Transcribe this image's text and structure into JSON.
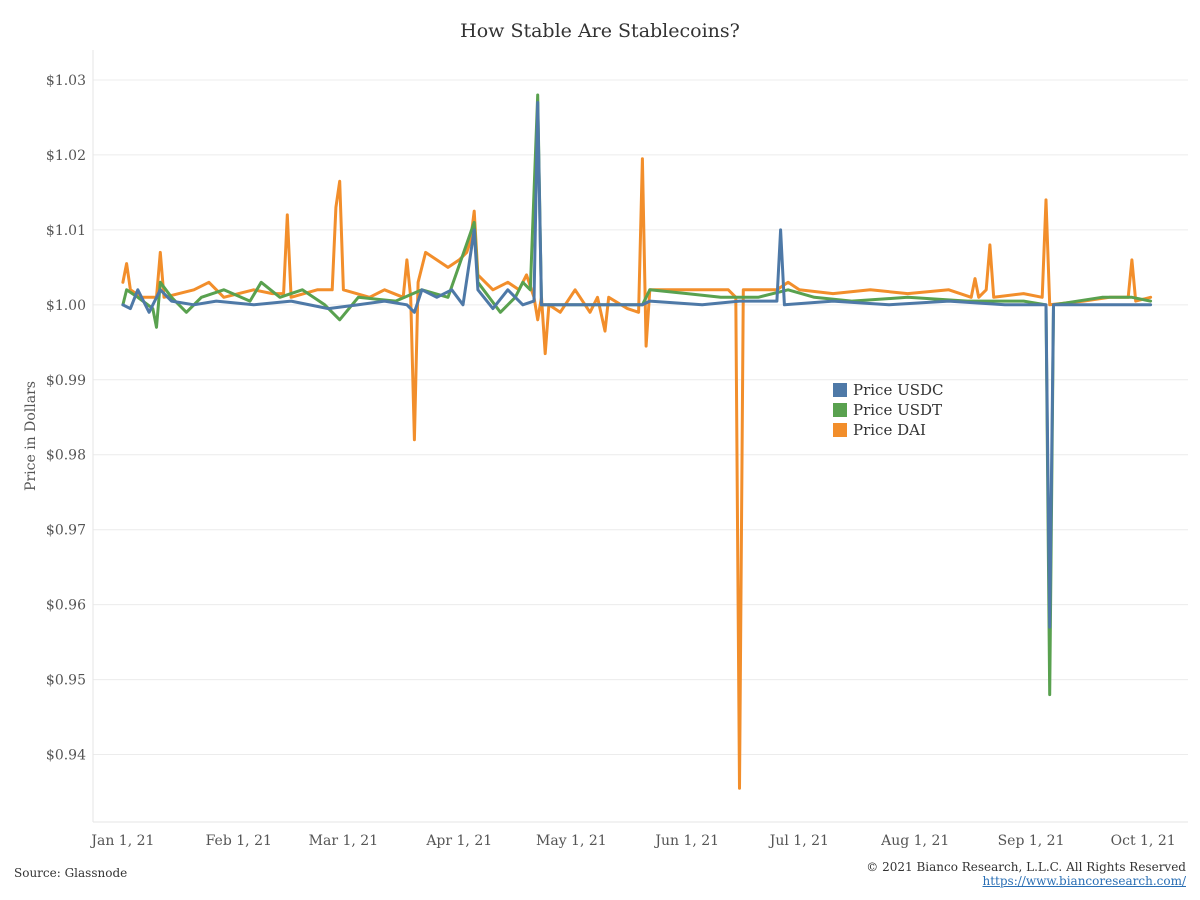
{
  "chart_data": {
    "type": "line",
    "title": "How Stable Are Stablecoins?",
    "ylabel": "Price in Dollars",
    "xlabel": "",
    "ylim": [
      0.931,
      1.034
    ],
    "yticks": [
      0.94,
      0.95,
      0.96,
      0.97,
      0.98,
      0.99,
      1.0,
      1.01,
      1.02,
      1.03
    ],
    "ytick_labels": [
      "$0.94",
      "$0.95",
      "$0.96",
      "$0.97",
      "$0.98",
      "$0.99",
      "$1.00",
      "$1.01",
      "$1.02",
      "$1.03"
    ],
    "xlim": [
      "2020-12-24",
      "2021-10-13"
    ],
    "xticks": [
      "2021-01-01",
      "2021-02-01",
      "2021-03-01",
      "2021-04-01",
      "2021-05-01",
      "2021-06-01",
      "2021-07-01",
      "2021-08-01",
      "2021-09-01",
      "2021-10-01"
    ],
    "xtick_labels": [
      "Jan 1, 21",
      "Feb 1, 21",
      "Mar 1, 21",
      "Apr 1, 21",
      "May 1, 21",
      "Jun 1, 21",
      "Jul 1, 21",
      "Aug 1, 21",
      "Sep 1, 21",
      "Oct 1, 21"
    ],
    "grid": "horizontal",
    "legend_position": "center-right",
    "series": [
      {
        "name": "Price DAI",
        "color": "#f28e2b",
        "points": [
          [
            "2021-01-01",
            1.003
          ],
          [
            "2021-01-02",
            1.0055
          ],
          [
            "2021-01-03",
            1.002
          ],
          [
            "2021-01-06",
            1.001
          ],
          [
            "2021-01-10",
            1.001
          ],
          [
            "2021-01-11",
            1.007
          ],
          [
            "2021-01-12",
            1.001
          ],
          [
            "2021-01-20",
            1.002
          ],
          [
            "2021-01-24",
            1.003
          ],
          [
            "2021-01-28",
            1.001
          ],
          [
            "2021-02-05",
            1.002
          ],
          [
            "2021-02-10",
            1.0015
          ],
          [
            "2021-02-13",
            1.0015
          ],
          [
            "2021-02-14",
            1.012
          ],
          [
            "2021-02-15",
            1.001
          ],
          [
            "2021-02-22",
            1.002
          ],
          [
            "2021-02-26",
            1.002
          ],
          [
            "2021-02-27",
            1.013
          ],
          [
            "2021-02-28",
            1.0165
          ],
          [
            "2021-03-01",
            1.002
          ],
          [
            "2021-03-08",
            1.001
          ],
          [
            "2021-03-12",
            1.002
          ],
          [
            "2021-03-17",
            1.001
          ],
          [
            "2021-03-18",
            1.006
          ],
          [
            "2021-03-19",
            1.001
          ],
          [
            "2021-03-20",
            0.982
          ],
          [
            "2021-03-21",
            1.003
          ],
          [
            "2021-03-23",
            1.007
          ],
          [
            "2021-03-26",
            1.006
          ],
          [
            "2021-03-29",
            1.005
          ],
          [
            "2021-04-01",
            1.006
          ],
          [
            "2021-04-03",
            1.007
          ],
          [
            "2021-04-04",
            1.0085
          ],
          [
            "2021-04-05",
            1.0125
          ],
          [
            "2021-04-06",
            1.004
          ],
          [
            "2021-04-10",
            1.002
          ],
          [
            "2021-04-14",
            1.003
          ],
          [
            "2021-04-17",
            1.002
          ],
          [
            "2021-04-19",
            1.004
          ],
          [
            "2021-04-21",
            1.001
          ],
          [
            "2021-04-22",
            0.998
          ],
          [
            "2021-04-23",
            1.001
          ],
          [
            "2021-04-24",
            0.9935
          ],
          [
            "2021-04-25",
            1.0
          ],
          [
            "2021-04-28",
            0.999
          ],
          [
            "2021-05-02",
            1.002
          ],
          [
            "2021-05-06",
            0.999
          ],
          [
            "2021-05-08",
            1.001
          ],
          [
            "2021-05-10",
            0.9965
          ],
          [
            "2021-05-11",
            1.001
          ],
          [
            "2021-05-16",
            0.9995
          ],
          [
            "2021-05-19",
            0.999
          ],
          [
            "2021-05-20",
            1.0195
          ],
          [
            "2021-05-21",
            0.9945
          ],
          [
            "2021-05-22",
            1.002
          ],
          [
            "2021-05-30",
            1.002
          ],
          [
            "2021-06-06",
            1.002
          ],
          [
            "2021-06-12",
            1.002
          ],
          [
            "2021-06-14",
            1.001
          ],
          [
            "2021-06-15",
            0.9355
          ],
          [
            "2021-06-16",
            1.002
          ],
          [
            "2021-06-20",
            1.002
          ],
          [
            "2021-06-25",
            1.002
          ],
          [
            "2021-06-28",
            1.003
          ],
          [
            "2021-07-01",
            1.002
          ],
          [
            "2021-07-10",
            1.0015
          ],
          [
            "2021-07-20",
            1.002
          ],
          [
            "2021-07-30",
            1.0015
          ],
          [
            "2021-08-10",
            1.002
          ],
          [
            "2021-08-16",
            1.001
          ],
          [
            "2021-08-17",
            1.0035
          ],
          [
            "2021-08-18",
            1.001
          ],
          [
            "2021-08-20",
            1.002
          ],
          [
            "2021-08-21",
            1.008
          ],
          [
            "2021-08-22",
            1.001
          ],
          [
            "2021-08-30",
            1.0015
          ],
          [
            "2021-09-04",
            1.001
          ],
          [
            "2021-09-05",
            1.014
          ],
          [
            "2021-09-06",
            1.0
          ],
          [
            "2021-09-15",
            1.0005
          ],
          [
            "2021-09-22",
            1.001
          ],
          [
            "2021-09-27",
            1.001
          ],
          [
            "2021-09-28",
            1.006
          ],
          [
            "2021-09-29",
            1.0005
          ],
          [
            "2021-10-03",
            1.001
          ]
        ]
      },
      {
        "name": "Price USDT",
        "color": "#59a14f",
        "points": [
          [
            "2021-01-01",
            1.0
          ],
          [
            "2021-01-02",
            1.002
          ],
          [
            "2021-01-05",
            1.001
          ],
          [
            "2021-01-09",
            0.9995
          ],
          [
            "2021-01-10",
            0.997
          ],
          [
            "2021-01-11",
            1.003
          ],
          [
            "2021-01-14",
            1.001
          ],
          [
            "2021-01-18",
            0.999
          ],
          [
            "2021-01-22",
            1.001
          ],
          [
            "2021-01-28",
            1.002
          ],
          [
            "2021-02-04",
            1.0005
          ],
          [
            "2021-02-07",
            1.003
          ],
          [
            "2021-02-12",
            1.001
          ],
          [
            "2021-02-18",
            1.002
          ],
          [
            "2021-02-24",
            1.0
          ],
          [
            "2021-02-28",
            0.998
          ],
          [
            "2021-03-05",
            1.001
          ],
          [
            "2021-03-15",
            1.0005
          ],
          [
            "2021-03-22",
            1.002
          ],
          [
            "2021-03-29",
            1.001
          ],
          [
            "2021-04-05",
            1.011
          ],
          [
            "2021-04-06",
            1.003
          ],
          [
            "2021-04-12",
            0.999
          ],
          [
            "2021-04-16",
            1.001
          ],
          [
            "2021-04-18",
            1.003
          ],
          [
            "2021-04-20",
            1.002
          ],
          [
            "2021-04-22",
            1.028
          ],
          [
            "2021-04-23",
            1.0
          ],
          [
            "2021-05-10",
            1.0
          ],
          [
            "2021-05-20",
            1.0
          ],
          [
            "2021-05-22",
            1.002
          ],
          [
            "2021-06-01",
            1.0015
          ],
          [
            "2021-06-10",
            1.001
          ],
          [
            "2021-06-20",
            1.001
          ],
          [
            "2021-06-28",
            1.002
          ],
          [
            "2021-07-05",
            1.001
          ],
          [
            "2021-07-15",
            1.0005
          ],
          [
            "2021-07-30",
            1.001
          ],
          [
            "2021-08-15",
            1.0005
          ],
          [
            "2021-08-30",
            1.0005
          ],
          [
            "2021-09-05",
            1.0
          ],
          [
            "2021-09-06",
            0.948
          ],
          [
            "2021-09-07",
            1.0
          ],
          [
            "2021-09-20",
            1.001
          ],
          [
            "2021-09-28",
            1.001
          ],
          [
            "2021-10-03",
            1.0005
          ]
        ]
      },
      {
        "name": "Price USDC",
        "color": "#4e79a7",
        "points": [
          [
            "2021-01-01",
            1.0
          ],
          [
            "2021-01-03",
            0.9995
          ],
          [
            "2021-01-05",
            1.002
          ],
          [
            "2021-01-08",
            0.999
          ],
          [
            "2021-01-11",
            1.002
          ],
          [
            "2021-01-14",
            1.0005
          ],
          [
            "2021-01-20",
            1.0
          ],
          [
            "2021-01-26",
            1.0005
          ],
          [
            "2021-02-05",
            1.0
          ],
          [
            "2021-02-15",
            1.0005
          ],
          [
            "2021-02-25",
            0.9995
          ],
          [
            "2021-03-05",
            1.0
          ],
          [
            "2021-03-12",
            1.0005
          ],
          [
            "2021-03-18",
            1.0
          ],
          [
            "2021-03-20",
            0.999
          ],
          [
            "2021-03-22",
            1.002
          ],
          [
            "2021-03-26",
            1.001
          ],
          [
            "2021-03-30",
            1.002
          ],
          [
            "2021-04-02",
            1.0
          ],
          [
            "2021-04-05",
            1.01
          ],
          [
            "2021-04-06",
            1.002
          ],
          [
            "2021-04-10",
            0.9995
          ],
          [
            "2021-04-14",
            1.002
          ],
          [
            "2021-04-18",
            1.0
          ],
          [
            "2021-04-21",
            1.0005
          ],
          [
            "2021-04-22",
            1.027
          ],
          [
            "2021-04-23",
            1.0
          ],
          [
            "2021-05-20",
            1.0
          ],
          [
            "2021-05-22",
            1.0005
          ],
          [
            "2021-06-05",
            1.0
          ],
          [
            "2021-06-15",
            1.0005
          ],
          [
            "2021-06-25",
            1.0005
          ],
          [
            "2021-06-26",
            1.01
          ],
          [
            "2021-06-27",
            1.0
          ],
          [
            "2021-07-10",
            1.0005
          ],
          [
            "2021-07-25",
            1.0
          ],
          [
            "2021-08-10",
            1.0005
          ],
          [
            "2021-08-25",
            1.0
          ],
          [
            "2021-09-05",
            1.0
          ],
          [
            "2021-09-06",
            0.957
          ],
          [
            "2021-09-07",
            1.0
          ],
          [
            "2021-09-20",
            1.0
          ],
          [
            "2021-10-03",
            1.0
          ]
        ]
      }
    ]
  },
  "footer": {
    "source": "Source: Glassnode",
    "copyright": "© 2021 Bianco Research, L.L.C. All Rights Reserved",
    "link": "https://www.biancoresearch.com/"
  }
}
